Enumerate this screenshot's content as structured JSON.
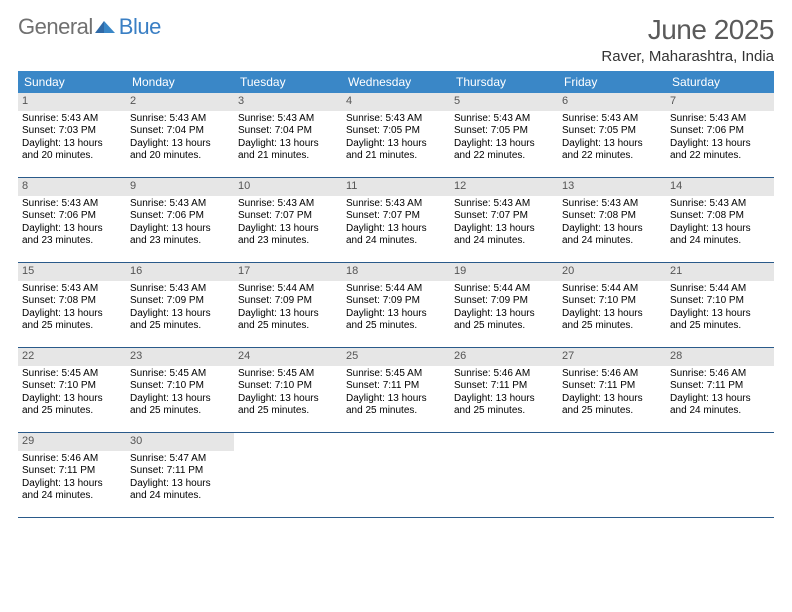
{
  "brand": {
    "word1": "General",
    "word2": "Blue"
  },
  "title": "June 2025",
  "location": "Raver, Maharashtra, India",
  "colors": {
    "header_bg": "#3a87c7",
    "daynum_bg": "#e6e6e6",
    "row_border": "#2a5a8a",
    "brand_gray": "#707070",
    "brand_blue": "#3a7fc4"
  },
  "dow": [
    "Sunday",
    "Monday",
    "Tuesday",
    "Wednesday",
    "Thursday",
    "Friday",
    "Saturday"
  ],
  "days": [
    {
      "n": 1,
      "sr": "5:43 AM",
      "ss": "7:03 PM",
      "dlh": "13",
      "dlm": "20"
    },
    {
      "n": 2,
      "sr": "5:43 AM",
      "ss": "7:04 PM",
      "dlh": "13",
      "dlm": "20"
    },
    {
      "n": 3,
      "sr": "5:43 AM",
      "ss": "7:04 PM",
      "dlh": "13",
      "dlm": "21"
    },
    {
      "n": 4,
      "sr": "5:43 AM",
      "ss": "7:05 PM",
      "dlh": "13",
      "dlm": "21"
    },
    {
      "n": 5,
      "sr": "5:43 AM",
      "ss": "7:05 PM",
      "dlh": "13",
      "dlm": "22"
    },
    {
      "n": 6,
      "sr": "5:43 AM",
      "ss": "7:05 PM",
      "dlh": "13",
      "dlm": "22"
    },
    {
      "n": 7,
      "sr": "5:43 AM",
      "ss": "7:06 PM",
      "dlh": "13",
      "dlm": "22"
    },
    {
      "n": 8,
      "sr": "5:43 AM",
      "ss": "7:06 PM",
      "dlh": "13",
      "dlm": "23"
    },
    {
      "n": 9,
      "sr": "5:43 AM",
      "ss": "7:06 PM",
      "dlh": "13",
      "dlm": "23"
    },
    {
      "n": 10,
      "sr": "5:43 AM",
      "ss": "7:07 PM",
      "dlh": "13",
      "dlm": "23"
    },
    {
      "n": 11,
      "sr": "5:43 AM",
      "ss": "7:07 PM",
      "dlh": "13",
      "dlm": "24"
    },
    {
      "n": 12,
      "sr": "5:43 AM",
      "ss": "7:07 PM",
      "dlh": "13",
      "dlm": "24"
    },
    {
      "n": 13,
      "sr": "5:43 AM",
      "ss": "7:08 PM",
      "dlh": "13",
      "dlm": "24"
    },
    {
      "n": 14,
      "sr": "5:43 AM",
      "ss": "7:08 PM",
      "dlh": "13",
      "dlm": "24"
    },
    {
      "n": 15,
      "sr": "5:43 AM",
      "ss": "7:08 PM",
      "dlh": "13",
      "dlm": "25"
    },
    {
      "n": 16,
      "sr": "5:43 AM",
      "ss": "7:09 PM",
      "dlh": "13",
      "dlm": "25"
    },
    {
      "n": 17,
      "sr": "5:44 AM",
      "ss": "7:09 PM",
      "dlh": "13",
      "dlm": "25"
    },
    {
      "n": 18,
      "sr": "5:44 AM",
      "ss": "7:09 PM",
      "dlh": "13",
      "dlm": "25"
    },
    {
      "n": 19,
      "sr": "5:44 AM",
      "ss": "7:09 PM",
      "dlh": "13",
      "dlm": "25"
    },
    {
      "n": 20,
      "sr": "5:44 AM",
      "ss": "7:10 PM",
      "dlh": "13",
      "dlm": "25"
    },
    {
      "n": 21,
      "sr": "5:44 AM",
      "ss": "7:10 PM",
      "dlh": "13",
      "dlm": "25"
    },
    {
      "n": 22,
      "sr": "5:45 AM",
      "ss": "7:10 PM",
      "dlh": "13",
      "dlm": "25"
    },
    {
      "n": 23,
      "sr": "5:45 AM",
      "ss": "7:10 PM",
      "dlh": "13",
      "dlm": "25"
    },
    {
      "n": 24,
      "sr": "5:45 AM",
      "ss": "7:10 PM",
      "dlh": "13",
      "dlm": "25"
    },
    {
      "n": 25,
      "sr": "5:45 AM",
      "ss": "7:11 PM",
      "dlh": "13",
      "dlm": "25"
    },
    {
      "n": 26,
      "sr": "5:46 AM",
      "ss": "7:11 PM",
      "dlh": "13",
      "dlm": "25"
    },
    {
      "n": 27,
      "sr": "5:46 AM",
      "ss": "7:11 PM",
      "dlh": "13",
      "dlm": "25"
    },
    {
      "n": 28,
      "sr": "5:46 AM",
      "ss": "7:11 PM",
      "dlh": "13",
      "dlm": "24"
    },
    {
      "n": 29,
      "sr": "5:46 AM",
      "ss": "7:11 PM",
      "dlh": "13",
      "dlm": "24"
    },
    {
      "n": 30,
      "sr": "5:47 AM",
      "ss": "7:11 PM",
      "dlh": "13",
      "dlm": "24"
    }
  ],
  "labels": {
    "sunrise": "Sunrise:",
    "sunset": "Sunset:",
    "daylight": "Daylight:",
    "hours": "hours",
    "and": "and",
    "minutes": "minutes."
  },
  "layout": {
    "start_dow": 0,
    "total_cells": 35
  }
}
